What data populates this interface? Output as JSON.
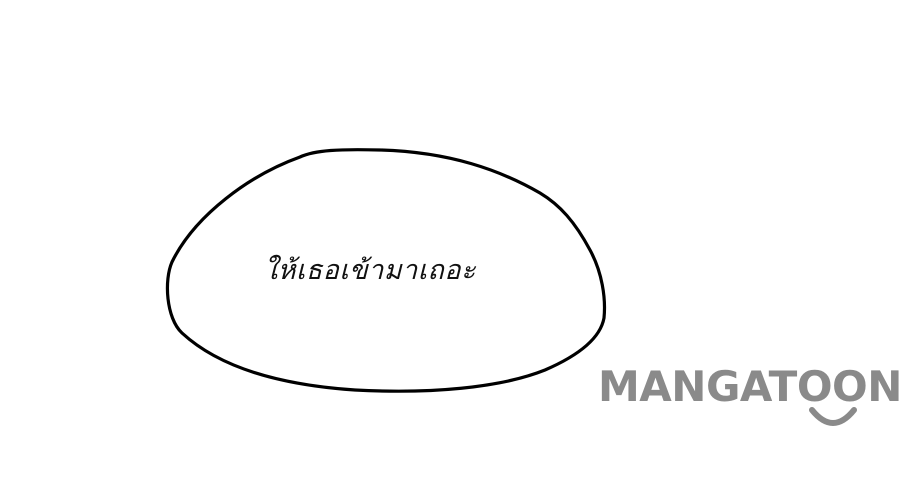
{
  "bubble": {
    "text": "ให้เธอเข้ามาเถอะ"
  },
  "watermark": {
    "text": "MANGATOON",
    "color": "#8a8a8a"
  }
}
